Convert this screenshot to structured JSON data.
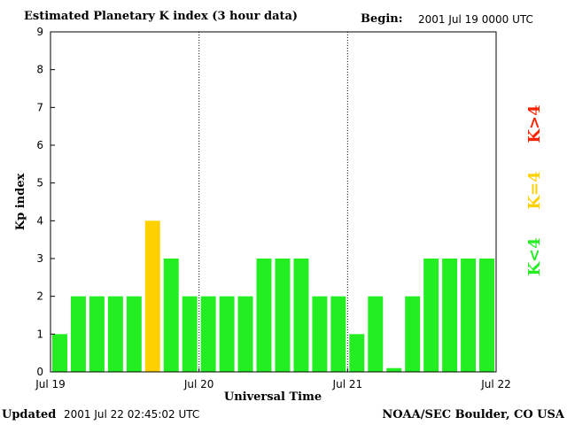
{
  "header": {
    "title": "Estimated Planetary K index (3 hour data)",
    "begin_label": "Begin:",
    "begin_value": "2001 Jul 19 0000 UTC"
  },
  "footer": {
    "updated_label": "Updated",
    "updated_value": "2001 Jul 22 02:45:02 UTC",
    "credit": "NOAA/SEC Boulder, CO USA"
  },
  "legend": [
    {
      "label": "K>4",
      "color": "#ff2200"
    },
    {
      "label": "K=4",
      "color": "#ffd000"
    },
    {
      "label": "K<4",
      "color": "#22ee22"
    }
  ],
  "colors": {
    "low": "#22ee22",
    "equal": "#ffd000",
    "high": "#ff2200"
  },
  "chart_data": {
    "type": "bar",
    "title": "Estimated Planetary K index (3 hour data)",
    "xlabel": "Universal Time",
    "ylabel": "Kp index",
    "ylim": [
      0,
      9
    ],
    "yticks": [
      "0",
      "1",
      "2",
      "3",
      "4",
      "5",
      "6",
      "7",
      "8",
      "9"
    ],
    "xticks": [
      "Jul 19",
      "Jul 20",
      "Jul 21",
      "Jul 22"
    ],
    "day_separators": true,
    "values": [
      1,
      2,
      2,
      2,
      2,
      4,
      3,
      2,
      2,
      2,
      2,
      3,
      3,
      3,
      2,
      2,
      1,
      2,
      0.1,
      2,
      3,
      3,
      3,
      3
    ]
  }
}
